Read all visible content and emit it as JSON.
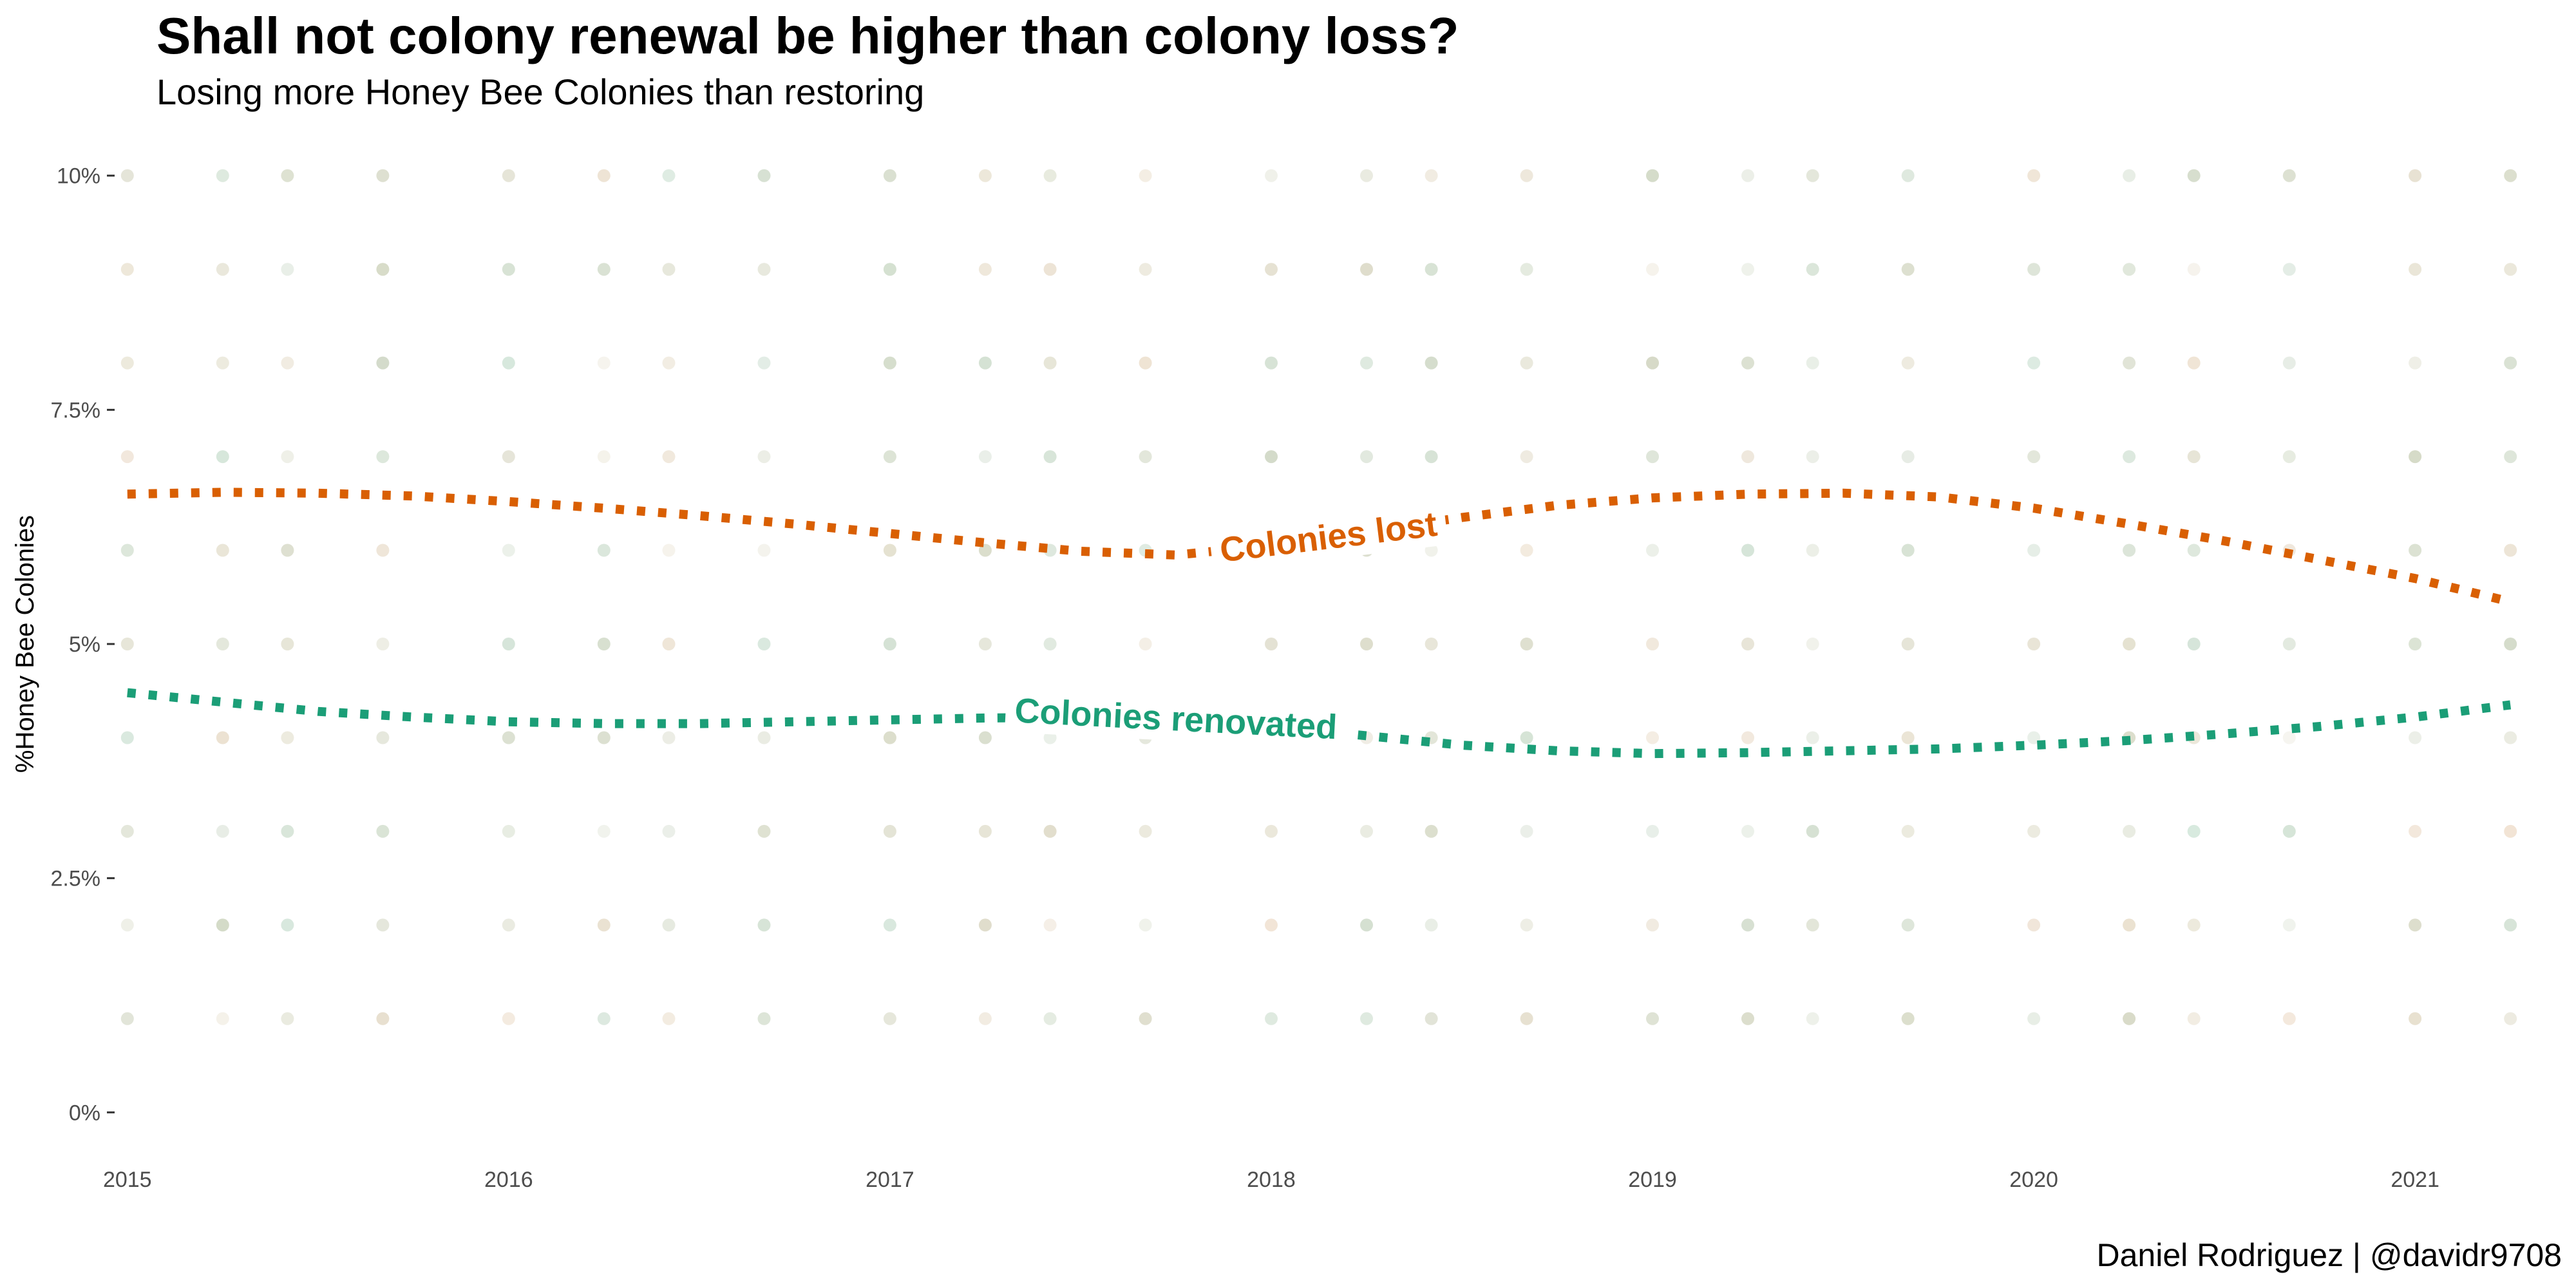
{
  "chart_data": {
    "type": "scatter",
    "title": "Shall not colony renewal be higher than colony loss?",
    "subtitle": "Losing more Honey Bee Colonies than restoring",
    "caption": "Daniel Rodriguez | @davidr9708",
    "xlabel": "",
    "ylabel": "%Honey Bee Colonies",
    "xlim": [
      2014.97,
      2021.27
    ],
    "ylim": [
      -0.5,
      10.5
    ],
    "x_ticks": [
      2015,
      2016,
      2017,
      2018,
      2019,
      2020,
      2021
    ],
    "x_tick_labels": [
      "2015",
      "2016",
      "2017",
      "2018",
      "2019",
      "2020",
      "2021"
    ],
    "y_ticks": [
      0,
      2.5,
      5,
      7.5,
      10
    ],
    "y_tick_labels": [
      "0%",
      "2.5%",
      "5%",
      "7.5%",
      "10%"
    ],
    "grid": false,
    "point_x": [
      2015,
      2015.25,
      2015.42,
      2015.67,
      2016,
      2016.25,
      2016.42,
      2016.67,
      2017,
      2017.25,
      2017.42,
      2017.67,
      2018,
      2018.25,
      2018.42,
      2018.67,
      2019,
      2019.25,
      2019.42,
      2019.67,
      2020,
      2020.25,
      2020.42,
      2020.67,
      2021,
      2021.25
    ],
    "point_y_levels": [
      1,
      2,
      3,
      4,
      5,
      6,
      7,
      8,
      9,
      10
    ],
    "series": [
      {
        "name": "Colonies lost",
        "color": "#d95f02",
        "smooth_x": [
          2015,
          2015.25,
          2015.5,
          2015.75,
          2016,
          2016.25,
          2016.5,
          2016.75,
          2017,
          2017.25,
          2017.5,
          2017.75,
          2018,
          2018.25,
          2018.5,
          2018.75,
          2019,
          2019.25,
          2019.5,
          2019.75,
          2020,
          2020.25,
          2020.5,
          2020.75,
          2021,
          2021.25
        ],
        "smooth_y": [
          6.6,
          6.62,
          6.61,
          6.58,
          6.52,
          6.45,
          6.37,
          6.28,
          6.18,
          6.08,
          5.99,
          5.95,
          6.05,
          6.2,
          6.35,
          6.48,
          6.56,
          6.6,
          6.61,
          6.57,
          6.45,
          6.28,
          6.1,
          5.9,
          5.7,
          5.45
        ]
      },
      {
        "name": "Colonies renovated",
        "color": "#1b9e77",
        "smooth_x": [
          2015,
          2015.25,
          2015.5,
          2015.75,
          2016,
          2016.25,
          2016.5,
          2016.75,
          2017,
          2017.25,
          2017.5,
          2017.75,
          2018,
          2018.25,
          2018.5,
          2018.75,
          2019,
          2019.25,
          2019.5,
          2019.75,
          2020,
          2020.25,
          2020.5,
          2020.75,
          2021,
          2021.25
        ],
        "smooth_y": [
          4.48,
          4.38,
          4.28,
          4.22,
          4.17,
          4.15,
          4.15,
          4.17,
          4.19,
          4.21,
          4.22,
          4.2,
          4.12,
          4.02,
          3.92,
          3.86,
          3.83,
          3.84,
          3.86,
          3.88,
          3.92,
          3.97,
          4.04,
          4.12,
          4.22,
          4.35
        ]
      }
    ]
  }
}
